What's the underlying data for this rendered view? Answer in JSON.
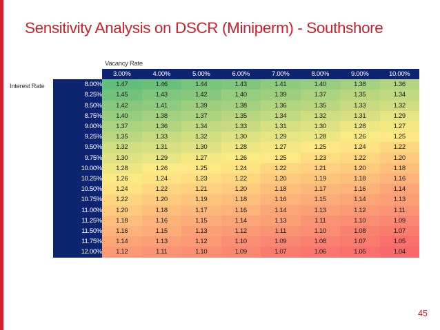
{
  "slide": {
    "title": "Sensitivity Analysis on DSCR (Miniperm) - Southshore",
    "page_number": "45",
    "accent_color": "#c8202c",
    "header_color": "#0d2470"
  },
  "table": {
    "column_axis_label": "Vacancy Rate",
    "row_axis_label": "Interest Rate",
    "columns": [
      "3.00%",
      "4.00%",
      "5.00%",
      "6.00%",
      "7.00%",
      "8.00%",
      "9.00%",
      "10.00%"
    ],
    "rows": [
      {
        "rate": "8.00%",
        "values": [
          "1.47",
          "1.46",
          "1.44",
          "1.43",
          "1.41",
          "1.40",
          "1.38",
          "1.36"
        ]
      },
      {
        "rate": "8.25%",
        "values": [
          "1.45",
          "1.43",
          "1.42",
          "1.40",
          "1.39",
          "1.37",
          "1.35",
          "1.34"
        ]
      },
      {
        "rate": "8.50%",
        "values": [
          "1.42",
          "1.41",
          "1.39",
          "1.38",
          "1.36",
          "1.35",
          "1.33",
          "1.32"
        ]
      },
      {
        "rate": "8.75%",
        "values": [
          "1.40",
          "1.38",
          "1.37",
          "1.35",
          "1.34",
          "1.32",
          "1.31",
          "1.29"
        ]
      },
      {
        "rate": "9.00%",
        "values": [
          "1.37",
          "1.36",
          "1.34",
          "1.33",
          "1.31",
          "1.30",
          "1.28",
          "1.27"
        ]
      },
      {
        "rate": "9.25%",
        "values": [
          "1.35",
          "1.33",
          "1.32",
          "1.30",
          "1.29",
          "1.28",
          "1.26",
          "1.25"
        ]
      },
      {
        "rate": "9.50%",
        "values": [
          "1.32",
          "1.31",
          "1.30",
          "1.28",
          "1.27",
          "1.25",
          "1.24",
          "1.22"
        ]
      },
      {
        "rate": "9.75%",
        "values": [
          "1.30",
          "1.29",
          "1.27",
          "1.26",
          "1.25",
          "1.23",
          "1.22",
          "1.20"
        ]
      },
      {
        "rate": "10.00%",
        "values": [
          "1.28",
          "1.26",
          "1.25",
          "1.24",
          "1.22",
          "1.21",
          "1.20",
          "1.18"
        ]
      },
      {
        "rate": "10.25%",
        "values": [
          "1.26",
          "1.24",
          "1.23",
          "1.22",
          "1.20",
          "1.19",
          "1.18",
          "1.16"
        ]
      },
      {
        "rate": "10.50%",
        "values": [
          "1.24",
          "1.22",
          "1.21",
          "1.20",
          "1.18",
          "1.17",
          "1.16",
          "1.14"
        ]
      },
      {
        "rate": "10.75%",
        "values": [
          "1.22",
          "1.20",
          "1.19",
          "1.18",
          "1.16",
          "1.15",
          "1.14",
          "1.13"
        ]
      },
      {
        "rate": "11.00%",
        "values": [
          "1.20",
          "1.18",
          "1.17",
          "1.16",
          "1.14",
          "1.13",
          "1.12",
          "1.11"
        ]
      },
      {
        "rate": "11.25%",
        "values": [
          "1.18",
          "1.16",
          "1.15",
          "1.14",
          "1.13",
          "1.11",
          "1.10",
          "1.09"
        ]
      },
      {
        "rate": "11.50%",
        "values": [
          "1.16",
          "1.15",
          "1.13",
          "1.12",
          "1.11",
          "1.10",
          "1.08",
          "1.07"
        ]
      },
      {
        "rate": "11.75%",
        "values": [
          "1.14",
          "1.13",
          "1.12",
          "1.10",
          "1.09",
          "1.08",
          "1.07",
          "1.05"
        ]
      },
      {
        "rate": "12.00%",
        "values": [
          "1.12",
          "1.11",
          "1.10",
          "1.09",
          "1.07",
          "1.06",
          "1.05",
          "1.04"
        ]
      }
    ]
  },
  "chart_data": {
    "type": "heatmap",
    "title": "Sensitivity Analysis on DSCR (Miniperm) - Southshore",
    "xlabel": "Vacancy Rate",
    "ylabel": "Interest Rate",
    "color_scale": {
      "low": "#f8696b",
      "mid": "#ffeb84",
      "high": "#63be7b"
    }
  }
}
